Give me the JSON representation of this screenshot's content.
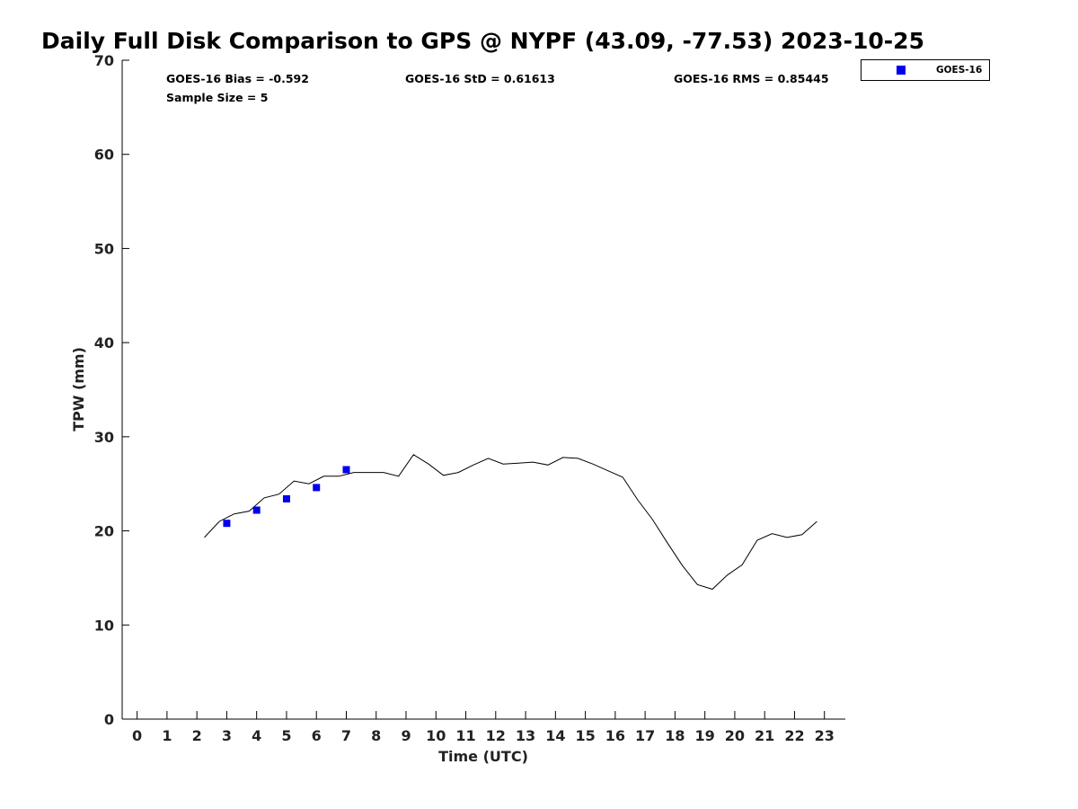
{
  "chart_data": {
    "type": "scatter",
    "title": "Daily Full Disk Comparison to GPS @ NYPF (43.09, -77.53) 2023-10-25",
    "xlabel": "Time (UTC)",
    "ylabel": "TPW (mm)",
    "xlim": [
      -0.5,
      23.7
    ],
    "ylim": [
      0,
      70
    ],
    "x_ticks": [
      "0",
      "1",
      "2",
      "3",
      "4",
      "5",
      "6",
      "7",
      "8",
      "9",
      "10",
      "11",
      "12",
      "13",
      "14",
      "15",
      "16",
      "17",
      "18",
      "19",
      "20",
      "21",
      "22",
      "23"
    ],
    "y_ticks": [
      "0",
      "10",
      "20",
      "30",
      "40",
      "50",
      "60",
      "70"
    ],
    "grid": false,
    "legend_position": "top-right outside",
    "stats": {
      "bias": "GOES-16 Bias = -0.592",
      "std": "GOES-16 StD = 0.61613",
      "rms": "GOES-16 RMS = 0.85445",
      "sample": "Sample Size = 5"
    },
    "series": [
      {
        "name": "GOES-16",
        "kind": "scatter",
        "marker": "square",
        "color": "#0000ee",
        "x": [
          3,
          4,
          5,
          6,
          7
        ],
        "y": [
          20.8,
          22.2,
          23.4,
          24.6,
          26.5
        ]
      },
      {
        "kind": "line",
        "color": "#000000",
        "x": [
          2.25,
          2.75,
          3.25,
          3.75,
          4.25,
          4.75,
          5.25,
          5.75,
          6.25,
          6.75,
          7.25,
          7.75,
          8.25,
          8.75,
          9.25,
          9.75,
          10.25,
          10.75,
          11.25,
          11.75,
          12.25,
          12.75,
          13.25,
          13.75,
          14.25,
          14.75,
          15.25,
          15.75,
          16.25,
          16.75,
          17.25,
          17.75,
          18.25,
          18.75,
          19.25,
          19.75,
          20.25,
          20.75,
          21.25,
          21.75,
          22.25,
          22.75
        ],
        "y": [
          19.3,
          21.0,
          21.8,
          22.1,
          23.5,
          23.9,
          25.3,
          25.0,
          25.8,
          25.8,
          26.2,
          26.2,
          26.2,
          25.8,
          28.1,
          27.1,
          25.9,
          26.2,
          27.0,
          27.7,
          27.1,
          27.2,
          27.3,
          27.0,
          27.8,
          27.7,
          27.1,
          26.4,
          25.7,
          23.3,
          21.2,
          18.7,
          16.3,
          14.3,
          13.8,
          15.3,
          16.4,
          19.0,
          19.7,
          19.3,
          19.6,
          21.0
        ]
      }
    ]
  }
}
